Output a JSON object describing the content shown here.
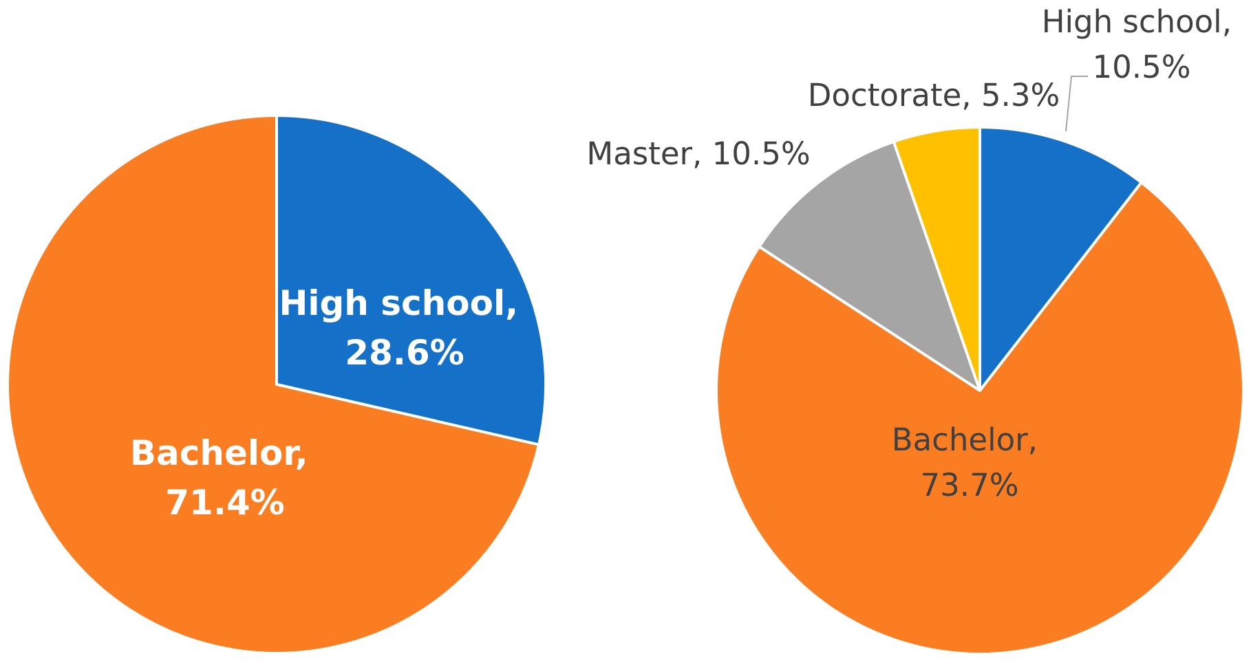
{
  "chart_data": [
    {
      "type": "pie",
      "values": [
        28.6,
        71.4
      ],
      "value_labels": [
        "High school, 28.6%",
        "Bachelor, 71.4%"
      ],
      "colors": [
        "#1570c8",
        "#fb7d22"
      ]
    },
    {
      "type": "pie",
      "values": [
        10.5,
        73.7,
        10.5,
        5.3
      ],
      "value_labels": [
        "High school, 10.5%",
        "Bachelor, 73.7%",
        "Master, 10.5%",
        "Doctorate, 5.3%"
      ],
      "colors": [
        "#1570c8",
        "#fb7d22",
        "#a5a5a5",
        "#ffc000"
      ]
    }
  ]
}
